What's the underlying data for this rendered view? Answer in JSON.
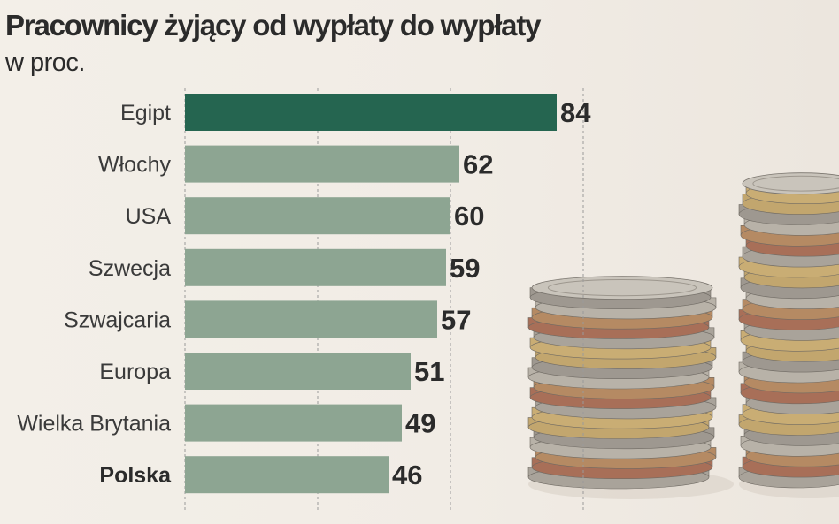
{
  "chart_data": {
    "type": "bar",
    "orientation": "horizontal",
    "title": "Pracownicy żyjący od wypłaty do wypłaty",
    "subtitle": "w proc.",
    "categories": [
      "Egipt",
      "Włochy",
      "USA",
      "Szwecja",
      "Szwajcaria",
      "Europa",
      "Wielka Brytania",
      "Polska"
    ],
    "values": [
      84,
      62,
      60,
      59,
      57,
      51,
      49,
      46
    ],
    "highlight": [
      "Egipt"
    ],
    "bold_labels": [
      "Polska"
    ],
    "xlim": [
      0,
      100
    ],
    "gridlines": [
      0,
      30,
      60,
      90
    ],
    "xlabel": "",
    "ylabel": "",
    "colors": {
      "highlight_bar": "#256550",
      "bar": "#8da592",
      "value_text": "#2b2b2b",
      "label_text": "#3a3a3a",
      "grid": "#9a9a9a"
    }
  }
}
